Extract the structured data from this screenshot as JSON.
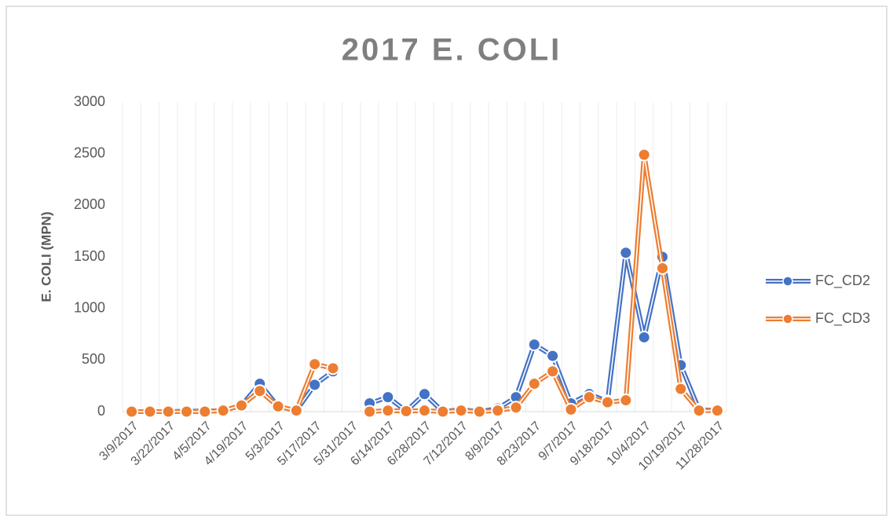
{
  "chart_data": {
    "type": "line",
    "title": "2017 E. COLI",
    "y_label": "E. COLI (MPN)",
    "categories": [
      "3/9/2017",
      null,
      "3/22/2017",
      null,
      "4/5/2017",
      null,
      "4/19/2017",
      null,
      "5/3/2017",
      null,
      "5/17/2017",
      null,
      "5/31/2017",
      null,
      "6/14/2017",
      null,
      "6/28/2017",
      null,
      "7/12/2017",
      null,
      "8/9/2017",
      null,
      "8/23/2017",
      null,
      "9/7/2017",
      null,
      "9/18/2017",
      null,
      "10/4/2017",
      null,
      "10/19/2017",
      null,
      "11/28/2017"
    ],
    "series": [
      {
        "name": "FC_CD2",
        "color": "#4472c4",
        "values": [
          0,
          0,
          0,
          5,
          5,
          10,
          60,
          270,
          50,
          10,
          260,
          390,
          null,
          80,
          140,
          5,
          170,
          0,
          20,
          0,
          30,
          140,
          650,
          540,
          80,
          170,
          100,
          1540,
          720,
          1500,
          450,
          20,
          10
        ]
      },
      {
        "name": "FC_CD3",
        "color": "#ed7d31",
        "values": [
          0,
          0,
          0,
          0,
          0,
          10,
          60,
          200,
          50,
          10,
          460,
          420,
          null,
          0,
          10,
          5,
          10,
          0,
          10,
          0,
          10,
          40,
          270,
          390,
          20,
          140,
          90,
          110,
          2490,
          1390,
          220,
          10,
          10
        ]
      }
    ],
    "ylim": [
      0,
      3000
    ],
    "yticks": [
      0,
      500,
      1000,
      1500,
      2000,
      2500,
      3000
    ],
    "legend": "right"
  }
}
